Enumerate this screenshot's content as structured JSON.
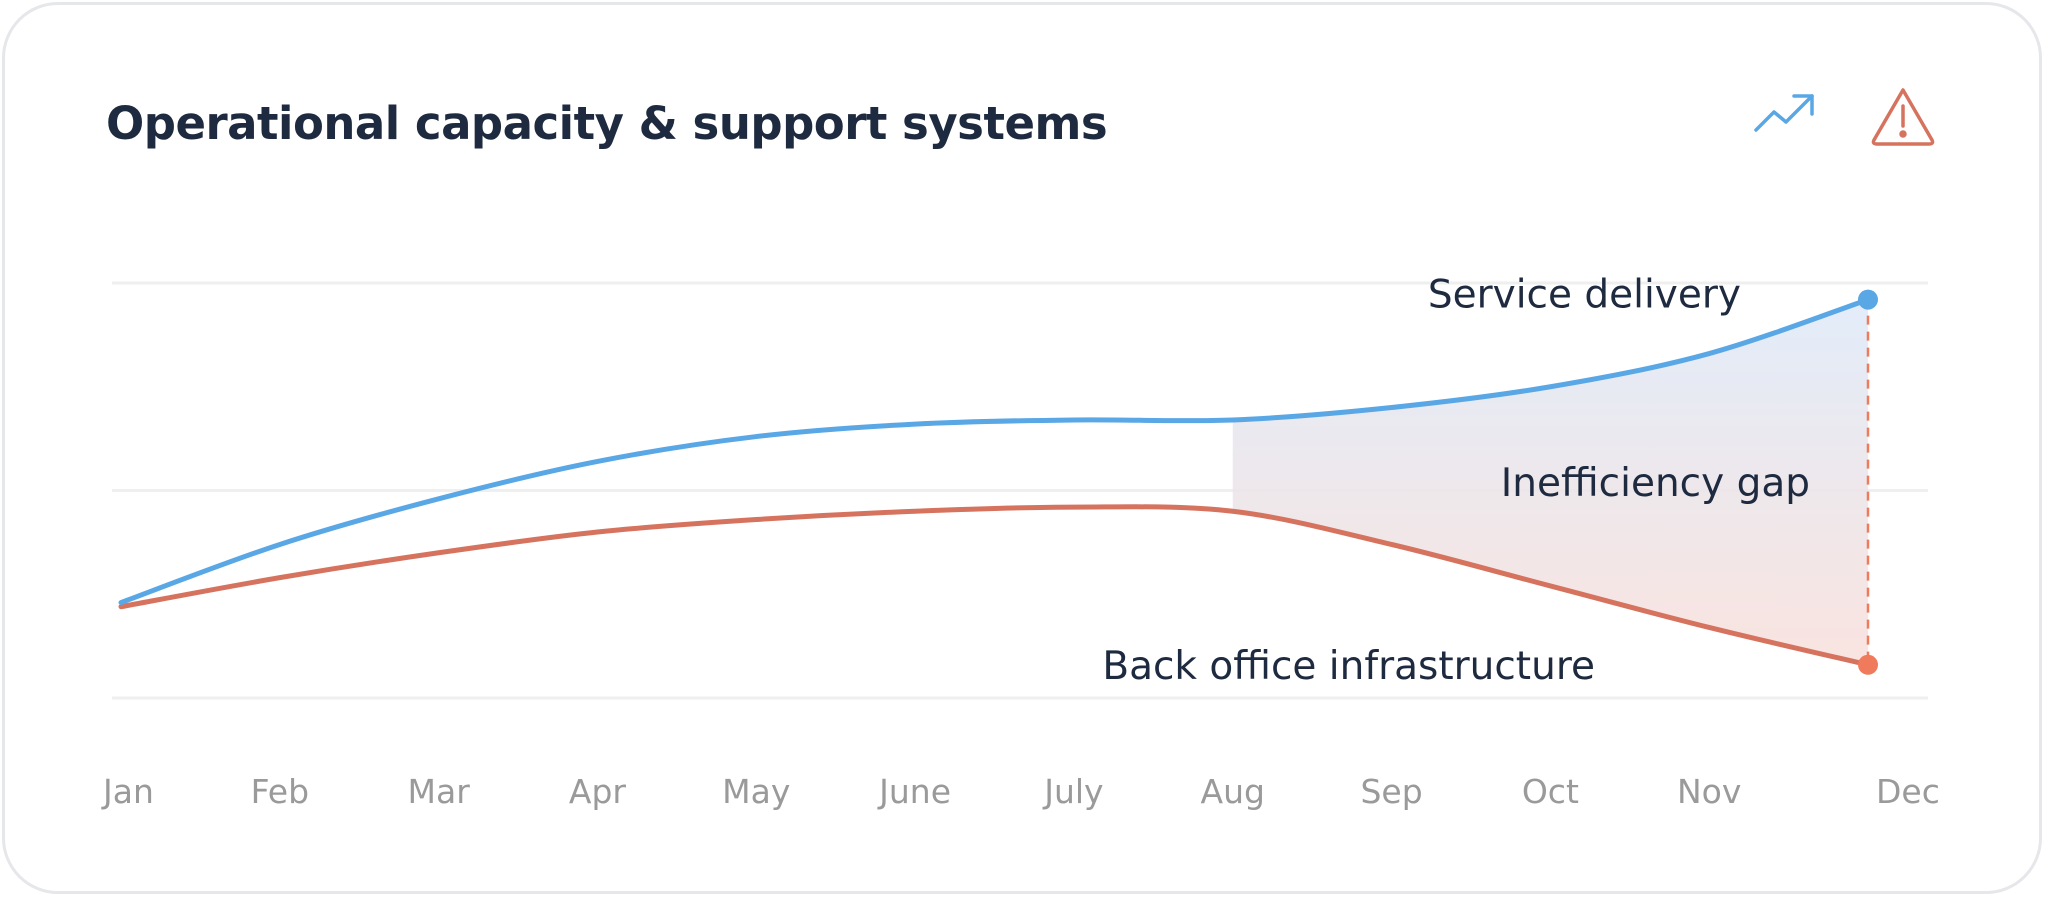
{
  "card": {
    "title": "Operational capacity & support systems",
    "icons": [
      "trending-up-icon",
      "warning-triangle-icon"
    ]
  },
  "colors": {
    "service": "#5aa7e6",
    "backoffice": "#d6735f",
    "backoffice_point": "#f07a5c",
    "gap_top": "#dde9f8",
    "gap_bottom": "#f8dfda",
    "gridline": "#efefef",
    "title": "#1e2a3f",
    "tick": "#9a9a9a"
  },
  "chart_data": {
    "type": "line",
    "title": "Operational capacity & support systems",
    "xlabel": "",
    "ylabel": "",
    "categories": [
      "Jan",
      "Feb",
      "Mar",
      "Apr",
      "May",
      "June",
      "July",
      "Aug",
      "Sep",
      "Oct",
      "Nov",
      "Dec"
    ],
    "ylim": [
      0,
      100
    ],
    "grid": true,
    "series": [
      {
        "name": "Service delivery",
        "x": [
          0,
          1,
          2,
          3,
          4,
          5,
          6,
          7,
          8,
          9,
          10,
          11
        ],
        "values": [
          23,
          37,
          48,
          57,
          63,
          66,
          67,
          67,
          70,
          75,
          83,
          96
        ]
      },
      {
        "name": "Back office infrastructure",
        "x": [
          0,
          1,
          2,
          3,
          4,
          5,
          6,
          7,
          8,
          9,
          10,
          11
        ],
        "values": [
          22,
          29,
          35,
          40,
          43,
          45,
          46,
          45,
          37,
          27,
          17,
          8
        ]
      }
    ],
    "annotations": [
      {
        "text": "Inefficiency gap",
        "from": "Aug",
        "to": "Dec"
      }
    ]
  }
}
